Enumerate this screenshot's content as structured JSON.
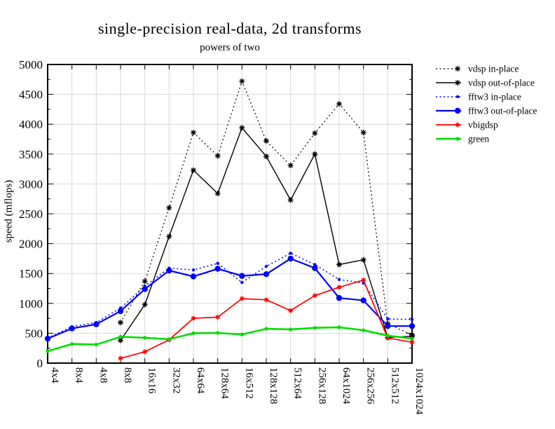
{
  "chart_data": {
    "type": "line",
    "title": "single-precision real-data, 2d transforms",
    "subtitle": "powers of two",
    "ylabel": "speed (mflops)",
    "ylim": [
      0,
      5000
    ],
    "ytick_step": 500,
    "ytick_minor_step": 250,
    "grid": true,
    "legend_position": "outside-right-top",
    "categories": [
      "4x4",
      "8x4",
      "4x8",
      "8x8",
      "16x16",
      "32x32",
      "64x64",
      "128x64",
      "16x512",
      "128x128",
      "512x64",
      "256x128",
      "64x1024",
      "256x256",
      "512x512",
      "1024x1024"
    ],
    "series": [
      {
        "name": "vdsp in-place",
        "color": "#000000",
        "line": "dotted",
        "width": 1.2,
        "marker": "star",
        "marker_size": 4,
        "values": [
          null,
          null,
          null,
          680,
          1370,
          2600,
          3860,
          3470,
          4720,
          3720,
          3310,
          3850,
          4340,
          3860,
          660,
          470
        ]
      },
      {
        "name": "vdsp out-of-place",
        "color": "#000000",
        "line": "solid",
        "width": 1.4,
        "marker": "star",
        "marker_size": 4,
        "values": [
          null,
          null,
          null,
          380,
          980,
          2120,
          3230,
          2840,
          3940,
          3460,
          2730,
          3500,
          1650,
          1730,
          430,
          450
        ]
      },
      {
        "name": "fftw3 in-place",
        "color": "#0000ff",
        "line": "dotted",
        "width": 1.5,
        "marker": "dot",
        "marker_size": 2.2,
        "values": [
          420,
          610,
          680,
          920,
          1290,
          1590,
          1560,
          1670,
          1350,
          1620,
          1840,
          1650,
          1400,
          1340,
          740,
          730
        ]
      },
      {
        "name": "fftw3 out-of-place",
        "color": "#0000ff",
        "line": "solid",
        "width": 2.2,
        "marker": "dot",
        "marker_size": 4.2,
        "values": [
          410,
          580,
          650,
          870,
          1240,
          1550,
          1450,
          1580,
          1460,
          1490,
          1750,
          1590,
          1090,
          1050,
          620,
          620
        ]
      },
      {
        "name": "vbigdsp",
        "color": "#ff0000",
        "line": "solid",
        "width": 1.7,
        "marker": "star",
        "marker_size": 3.5,
        "values": [
          null,
          null,
          null,
          80,
          190,
          390,
          750,
          770,
          1080,
          1060,
          880,
          1130,
          1270,
          1390,
          420,
          350
        ]
      },
      {
        "name": "green",
        "color": "#00dd00",
        "line": "solid",
        "width": 2.6,
        "marker": "dot",
        "marker_size": 2.6,
        "values": [
          200,
          320,
          310,
          440,
          425,
          400,
          500,
          505,
          480,
          575,
          565,
          590,
          600,
          550,
          460,
          410
        ]
      }
    ]
  }
}
